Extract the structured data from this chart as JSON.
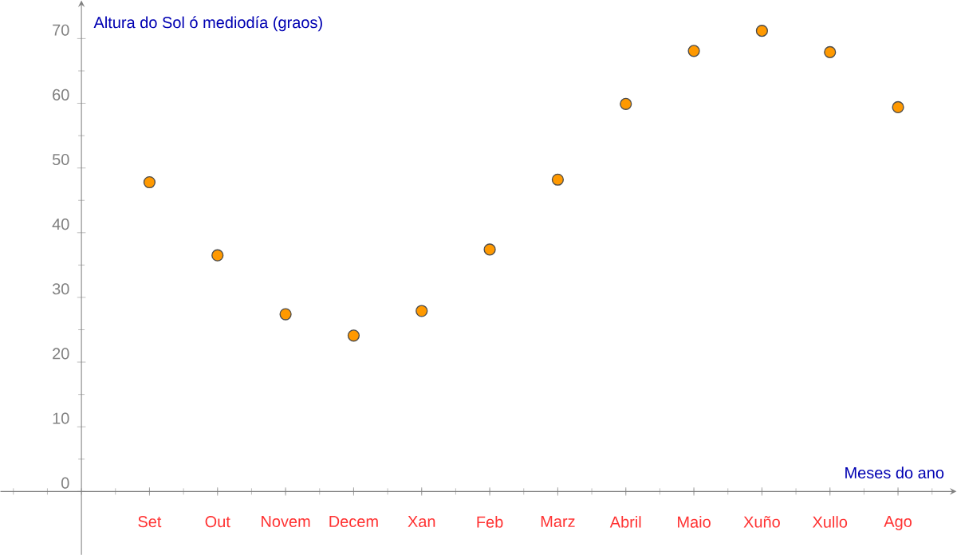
{
  "chart_data": {
    "type": "scatter",
    "ylabel": "Altura do Sol ó mediodía (graos)",
    "xlabel": "Meses do ano",
    "categories": [
      "Set",
      "Out",
      "Novem",
      "Decem",
      "Xan",
      "Feb",
      "Marz",
      "Abril",
      "Maio",
      "Xuño",
      "Xullo",
      "Ago"
    ],
    "values": [
      47.8,
      36.5,
      27.4,
      24.1,
      27.9,
      37.4,
      48.2,
      59.9,
      68.1,
      71.2,
      67.9,
      59.4
    ],
    "color": "#ff9900",
    "marker": "circle",
    "ylim": [
      -9.8,
      75.9
    ],
    "yticks": [
      0,
      10,
      20,
      30,
      40,
      50,
      60,
      70
    ]
  }
}
